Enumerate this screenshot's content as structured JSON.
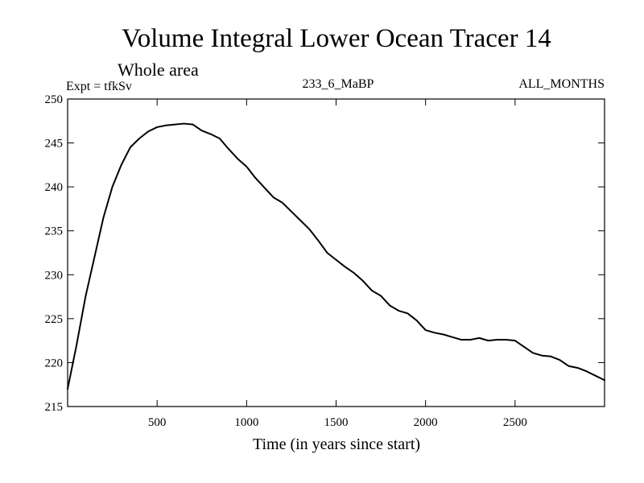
{
  "chart_data": {
    "type": "line",
    "title": "Volume Integral Lower Ocean Tracer 14",
    "subtitle": "Whole area",
    "header_left": "Expt = tfkSv",
    "header_center": "233_6_MaBP",
    "header_right": "ALL_MONTHS",
    "xlabel": "Time (in years since start)",
    "ylabel": "",
    "xlim": [
      0,
      3000
    ],
    "ylim": [
      215,
      250
    ],
    "xticks": [
      500,
      1000,
      1500,
      2000,
      2500
    ],
    "xtick_labels": [
      "500",
      "1000",
      "1500",
      "2000",
      "2500"
    ],
    "yticks": [
      215,
      220,
      225,
      230,
      235,
      240,
      245,
      250
    ],
    "ytick_labels": [
      "215",
      "220",
      "225",
      "230",
      "235",
      "240",
      "245",
      "250"
    ],
    "grid": false,
    "series": [
      {
        "name": "Tracer 14",
        "color": "#000000",
        "x": [
          0,
          50,
          100,
          150,
          200,
          250,
          300,
          350,
          400,
          450,
          500,
          550,
          600,
          650,
          700,
          750,
          800,
          850,
          900,
          950,
          1000,
          1050,
          1100,
          1150,
          1200,
          1250,
          1300,
          1350,
          1400,
          1450,
          1500,
          1550,
          1600,
          1650,
          1700,
          1750,
          1800,
          1850,
          1900,
          1950,
          2000,
          2050,
          2100,
          2150,
          2200,
          2250,
          2300,
          2350,
          2400,
          2450,
          2500,
          2550,
          2600,
          2650,
          2700,
          2750,
          2800,
          2850,
          2900,
          2950,
          3000
        ],
        "values": [
          217.0,
          222.0,
          227.5,
          232.0,
          236.5,
          240.0,
          242.5,
          244.5,
          245.5,
          246.3,
          246.8,
          247.0,
          247.1,
          247.2,
          247.1,
          246.4,
          246.0,
          245.5,
          244.3,
          243.2,
          242.3,
          241.0,
          239.9,
          238.8,
          238.2,
          237.2,
          236.2,
          235.2,
          233.9,
          232.5,
          231.7,
          230.9,
          230.2,
          229.3,
          228.2,
          227.6,
          226.5,
          225.9,
          225.6,
          224.8,
          223.7,
          223.4,
          223.2,
          222.9,
          222.6,
          222.6,
          222.8,
          222.5,
          222.6,
          222.6,
          222.5,
          221.8,
          221.1,
          220.8,
          220.7,
          220.3,
          219.6,
          219.4,
          219.0,
          218.5,
          218.0
        ]
      }
    ]
  }
}
